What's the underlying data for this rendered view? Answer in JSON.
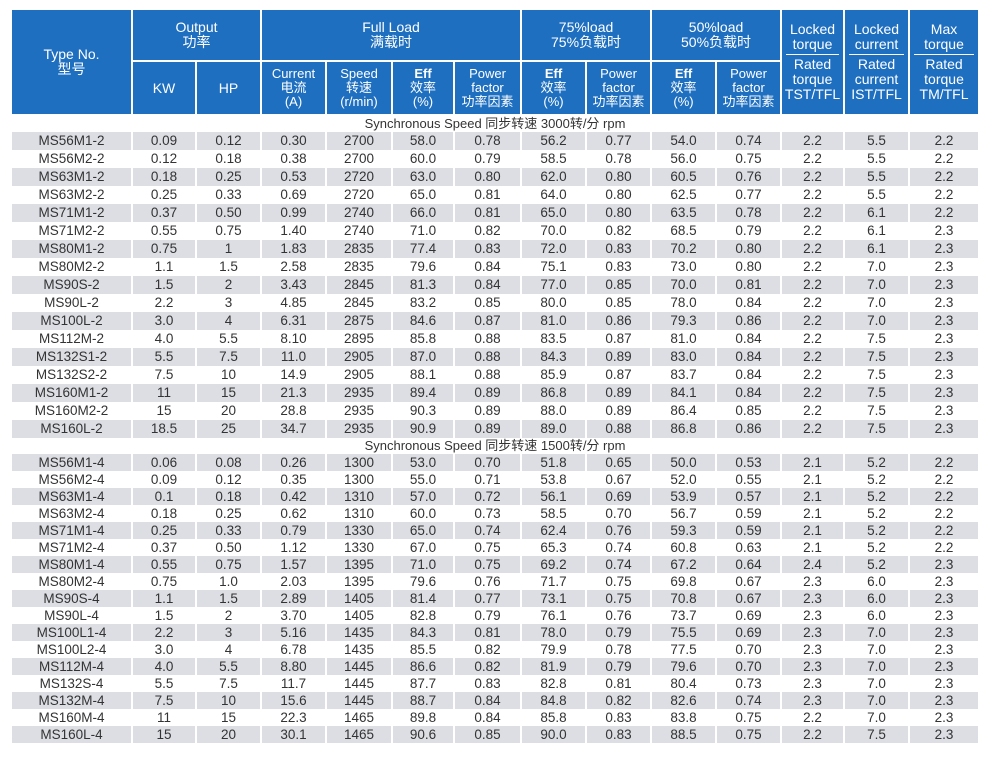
{
  "header": {
    "type_no": [
      "Type No.",
      "型号"
    ],
    "output": [
      "Output",
      "功率"
    ],
    "full_load": [
      "Full Load",
      "满载时"
    ],
    "load75": [
      "75%load",
      "75%负载时"
    ],
    "load50": [
      "50%load",
      "50%负载时"
    ],
    "locked_torque": [
      "Locked",
      "torque",
      "Rated",
      "torque",
      "TST/TFL"
    ],
    "locked_current": [
      "Locked",
      "current",
      "Rated",
      "current",
      "IST/TFL"
    ],
    "max_torque": [
      "Max",
      "torque",
      "Rated",
      "torque",
      "TM/TFL"
    ],
    "kw": "KW",
    "hp": "HP",
    "current": [
      "Current",
      "电流",
      "(A)"
    ],
    "speed": [
      "Speed",
      "转速",
      "(r/min)"
    ],
    "eff": [
      "Eff",
      "效率",
      "(%)"
    ],
    "pf": [
      "Power",
      "factor",
      "功率因素"
    ]
  },
  "sections": [
    {
      "title": "Synchronous Speed 同步转速 3000转/分 rpm",
      "rows": [
        [
          "MS56M1-2",
          "0.09",
          "0.12",
          "0.30",
          "2700",
          "58.0",
          "0.78",
          "56.2",
          "0.77",
          "54.0",
          "0.74",
          "2.2",
          "5.5",
          "2.2"
        ],
        [
          "MS56M2-2",
          "0.12",
          "0.18",
          "0.38",
          "2700",
          "60.0",
          "0.79",
          "58.5",
          "0.78",
          "56.0",
          "0.75",
          "2.2",
          "5.5",
          "2.2"
        ],
        [
          "MS63M1-2",
          "0.18",
          "0.25",
          "0.53",
          "2720",
          "63.0",
          "0.80",
          "62.0",
          "0.80",
          "60.5",
          "0.76",
          "2.2",
          "5.5",
          "2.2"
        ],
        [
          "MS63M2-2",
          "0.25",
          "0.33",
          "0.69",
          "2720",
          "65.0",
          "0.81",
          "64.0",
          "0.80",
          "62.5",
          "0.77",
          "2.2",
          "5.5",
          "2.2"
        ],
        [
          "MS71M1-2",
          "0.37",
          "0.50",
          "0.99",
          "2740",
          "66.0",
          "0.81",
          "65.0",
          "0.80",
          "63.5",
          "0.78",
          "2.2",
          "6.1",
          "2.2"
        ],
        [
          "MS71M2-2",
          "0.55",
          "0.75",
          "1.40",
          "2740",
          "71.0",
          "0.82",
          "70.0",
          "0.82",
          "68.5",
          "0.79",
          "2.2",
          "6.1",
          "2.3"
        ],
        [
          "MS80M1-2",
          "0.75",
          "1",
          "1.83",
          "2835",
          "77.4",
          "0.83",
          "72.0",
          "0.83",
          "70.2",
          "0.80",
          "2.2",
          "6.1",
          "2.3"
        ],
        [
          "MS80M2-2",
          "1.1",
          "1.5",
          "2.58",
          "2835",
          "79.6",
          "0.84",
          "75.1",
          "0.83",
          "73.0",
          "0.80",
          "2.2",
          "7.0",
          "2.3"
        ],
        [
          "MS90S-2",
          "1.5",
          "2",
          "3.43",
          "2845",
          "81.3",
          "0.84",
          "77.0",
          "0.85",
          "70.0",
          "0.81",
          "2.2",
          "7.0",
          "2.3"
        ],
        [
          "MS90L-2",
          "2.2",
          "3",
          "4.85",
          "2845",
          "83.2",
          "0.85",
          "80.0",
          "0.85",
          "78.0",
          "0.84",
          "2.2",
          "7.0",
          "2.3"
        ],
        [
          "MS100L-2",
          "3.0",
          "4",
          "6.31",
          "2875",
          "84.6",
          "0.87",
          "81.0",
          "0.86",
          "79.3",
          "0.86",
          "2.2",
          "7.0",
          "2.3"
        ],
        [
          "MS112M-2",
          "4.0",
          "5.5",
          "8.10",
          "2895",
          "85.8",
          "0.88",
          "83.5",
          "0.87",
          "81.0",
          "0.84",
          "2.2",
          "7.5",
          "2.3"
        ],
        [
          "MS132S1-2",
          "5.5",
          "7.5",
          "11.0",
          "2905",
          "87.0",
          "0.88",
          "84.3",
          "0.89",
          "83.0",
          "0.84",
          "2.2",
          "7.5",
          "2.3"
        ],
        [
          "MS132S2-2",
          "7.5",
          "10",
          "14.9",
          "2905",
          "88.1",
          "0.88",
          "85.9",
          "0.87",
          "83.7",
          "0.84",
          "2.2",
          "7.5",
          "2.3"
        ],
        [
          "MS160M1-2",
          "11",
          "15",
          "21.3",
          "2935",
          "89.4",
          "0.89",
          "86.8",
          "0.89",
          "84.1",
          "0.84",
          "2.2",
          "7.5",
          "2.3"
        ],
        [
          "MS160M2-2",
          "15",
          "20",
          "28.8",
          "2935",
          "90.3",
          "0.89",
          "88.0",
          "0.89",
          "86.4",
          "0.85",
          "2.2",
          "7.5",
          "2.3"
        ],
        [
          "MS160L-2",
          "18.5",
          "25",
          "34.7",
          "2935",
          "90.9",
          "0.89",
          "89.0",
          "0.88",
          "86.8",
          "0.86",
          "2.2",
          "7.5",
          "2.3"
        ]
      ]
    },
    {
      "title": "Synchronous Speed 同步转速 1500转/分 rpm",
      "rows": [
        [
          "MS56M1-4",
          "0.06",
          "0.08",
          "0.26",
          "1300",
          "53.0",
          "0.70",
          "51.8",
          "0.65",
          "50.0",
          "0.53",
          "2.1",
          "5.2",
          "2.2"
        ],
        [
          "MS56M2-4",
          "0.09",
          "0.12",
          "0.35",
          "1300",
          "55.0",
          "0.71",
          "53.8",
          "0.67",
          "52.0",
          "0.55",
          "2.1",
          "5.2",
          "2.2"
        ],
        [
          "MS63M1-4",
          "0.1",
          "0.18",
          "0.42",
          "1310",
          "57.0",
          "0.72",
          "56.1",
          "0.69",
          "53.9",
          "0.57",
          "2.1",
          "5.2",
          "2.2"
        ],
        [
          "MS63M2-4",
          "0.18",
          "0.25",
          "0.62",
          "1310",
          "60.0",
          "0.73",
          "58.5",
          "0.70",
          "56.7",
          "0.59",
          "2.1",
          "5.2",
          "2.2"
        ],
        [
          "MS71M1-4",
          "0.25",
          "0.33",
          "0.79",
          "1330",
          "65.0",
          "0.74",
          "62.4",
          "0.76",
          "59.3",
          "0.59",
          "2.1",
          "5.2",
          "2.2"
        ],
        [
          "MS71M2-4",
          "0.37",
          "0.50",
          "1.12",
          "1330",
          "67.0",
          "0.75",
          "65.3",
          "0.74",
          "60.8",
          "0.63",
          "2.1",
          "5.2",
          "2.2"
        ],
        [
          "MS80M1-4",
          "0.55",
          "0.75",
          "1.57",
          "1395",
          "71.0",
          "0.75",
          "69.2",
          "0.74",
          "67.2",
          "0.64",
          "2.4",
          "5.2",
          "2.3"
        ],
        [
          "MS80M2-4",
          "0.75",
          "1.0",
          "2.03",
          "1395",
          "79.6",
          "0.76",
          "71.7",
          "0.75",
          "69.8",
          "0.67",
          "2.3",
          "6.0",
          "2.3"
        ],
        [
          "MS90S-4",
          "1.1",
          "1.5",
          "2.89",
          "1405",
          "81.4",
          "0.77",
          "73.1",
          "0.75",
          "70.8",
          "0.67",
          "2.3",
          "6.0",
          "2.3"
        ],
        [
          "MS90L-4",
          "1.5",
          "2",
          "3.70",
          "1405",
          "82.8",
          "0.79",
          "76.1",
          "0.76",
          "73.7",
          "0.69",
          "2.3",
          "6.0",
          "2.3"
        ],
        [
          "MS100L1-4",
          "2.2",
          "3",
          "5.16",
          "1435",
          "84.3",
          "0.81",
          "78.0",
          "0.79",
          "75.5",
          "0.69",
          "2.3",
          "7.0",
          "2.3"
        ],
        [
          "MS100L2-4",
          "3.0",
          "4",
          "6.78",
          "1435",
          "85.5",
          "0.82",
          "79.9",
          "0.78",
          "77.5",
          "0.70",
          "2.3",
          "7.0",
          "2.3"
        ],
        [
          "MS112M-4",
          "4.0",
          "5.5",
          "8.80",
          "1445",
          "86.6",
          "0.82",
          "81.9",
          "0.79",
          "79.6",
          "0.70",
          "2.3",
          "7.0",
          "2.3"
        ],
        [
          "MS132S-4",
          "5.5",
          "7.5",
          "11.7",
          "1445",
          "87.7",
          "0.83",
          "82.8",
          "0.81",
          "80.4",
          "0.73",
          "2.3",
          "7.0",
          "2.3"
        ],
        [
          "MS132M-4",
          "7.5",
          "10",
          "15.6",
          "1445",
          "88.7",
          "0.84",
          "84.8",
          "0.82",
          "82.6",
          "0.74",
          "2.3",
          "7.0",
          "2.3"
        ],
        [
          "MS160M-4",
          "11",
          "15",
          "22.3",
          "1465",
          "89.8",
          "0.84",
          "85.8",
          "0.83",
          "83.8",
          "0.75",
          "2.2",
          "7.0",
          "2.3"
        ],
        [
          "MS160L-4",
          "15",
          "20",
          "30.1",
          "1465",
          "90.6",
          "0.85",
          "90.0",
          "0.83",
          "88.5",
          "0.75",
          "2.2",
          "7.5",
          "2.3"
        ]
      ]
    }
  ],
  "colors": {
    "header_bg": "#1f6fc1",
    "row_alt": "#dcdee3"
  }
}
